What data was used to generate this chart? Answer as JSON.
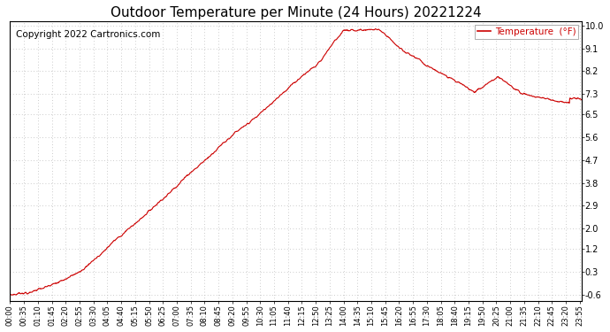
{
  "title": "Outdoor Temperature per Minute (24 Hours) 20221224",
  "copyright_text": "Copyright 2022 Cartronics.com",
  "legend_label": "Temperature  (°F)",
  "line_color": "#cc0000",
  "legend_color": "#cc0000",
  "background_color": "#ffffff",
  "grid_color": "#bbbbbb",
  "ylim": [
    -0.6,
    10.0
  ],
  "yticks": [
    -0.6,
    0.3,
    1.2,
    2.0,
    2.9,
    3.8,
    4.7,
    5.6,
    6.5,
    7.3,
    8.2,
    9.1,
    10.0
  ],
  "title_fontsize": 11,
  "copyright_fontsize": 7.5,
  "xlabel_fontsize": 6,
  "ylabel_fontsize": 7,
  "xtick_labels": [
    "00:00",
    "00:35",
    "01:10",
    "01:45",
    "02:20",
    "02:55",
    "03:30",
    "04:05",
    "04:40",
    "05:15",
    "05:50",
    "06:25",
    "07:00",
    "07:35",
    "08:10",
    "08:45",
    "09:20",
    "09:55",
    "10:30",
    "11:05",
    "11:40",
    "12:15",
    "12:50",
    "13:25",
    "14:00",
    "14:35",
    "15:10",
    "15:45",
    "16:20",
    "16:55",
    "17:30",
    "18:05",
    "18:40",
    "19:15",
    "19:50",
    "20:25",
    "21:00",
    "21:35",
    "22:10",
    "22:45",
    "23:20",
    "23:55"
  ],
  "figsize": [
    6.9,
    3.75
  ],
  "dpi": 100
}
